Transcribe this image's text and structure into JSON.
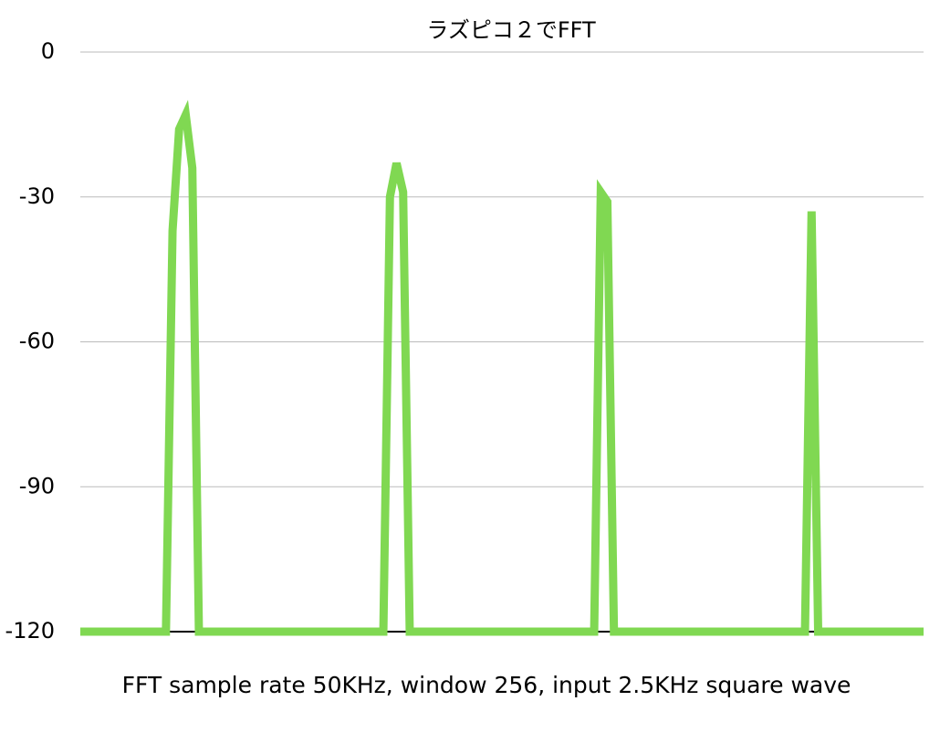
{
  "chart_data": {
    "type": "line",
    "title": "ラズピコ２でFFT",
    "x_label": "FFT sample rate 50KHz, window 256, input 2.5KHz square wave",
    "color": "#80d852",
    "values": [
      -120,
      -120,
      -120,
      -120,
      -120,
      -120,
      -120,
      -120,
      -120,
      -120,
      -120,
      -120,
      -120,
      -120,
      -37,
      -16,
      -13,
      -24,
      -120,
      -120,
      -120,
      -120,
      -120,
      -120,
      -120,
      -120,
      -120,
      -120,
      -120,
      -120,
      -120,
      -120,
      -120,
      -120,
      -120,
      -120,
      -120,
      -120,
      -120,
      -120,
      -120,
      -120,
      -120,
      -120,
      -120,
      -120,
      -120,
      -30,
      -23,
      -29,
      -120,
      -120,
      -120,
      -120,
      -120,
      -120,
      -120,
      -120,
      -120,
      -120,
      -120,
      -120,
      -120,
      -120,
      -120,
      -120,
      -120,
      -120,
      -120,
      -120,
      -120,
      -120,
      -120,
      -120,
      -120,
      -120,
      -120,
      -120,
      -120,
      -29,
      -31,
      -120,
      -120,
      -120,
      -120,
      -120,
      -120,
      -120,
      -120,
      -120,
      -120,
      -120,
      -120,
      -120,
      -120,
      -120,
      -120,
      -120,
      -120,
      -120,
      -120,
      -120,
      -120,
      -120,
      -120,
      -120,
      -120,
      -120,
      -120,
      -120,
      -120,
      -33,
      -120,
      -120,
      -120,
      -120,
      -120,
      -120,
      -120,
      -120,
      -120,
      -120,
      -120,
      -120,
      -120,
      -120,
      -120,
      -120,
      -120
    ],
    "ylim": [
      -120,
      0
    ],
    "yticks": [
      0,
      -30,
      -60,
      -90,
      -120
    ],
    "grid": true
  }
}
